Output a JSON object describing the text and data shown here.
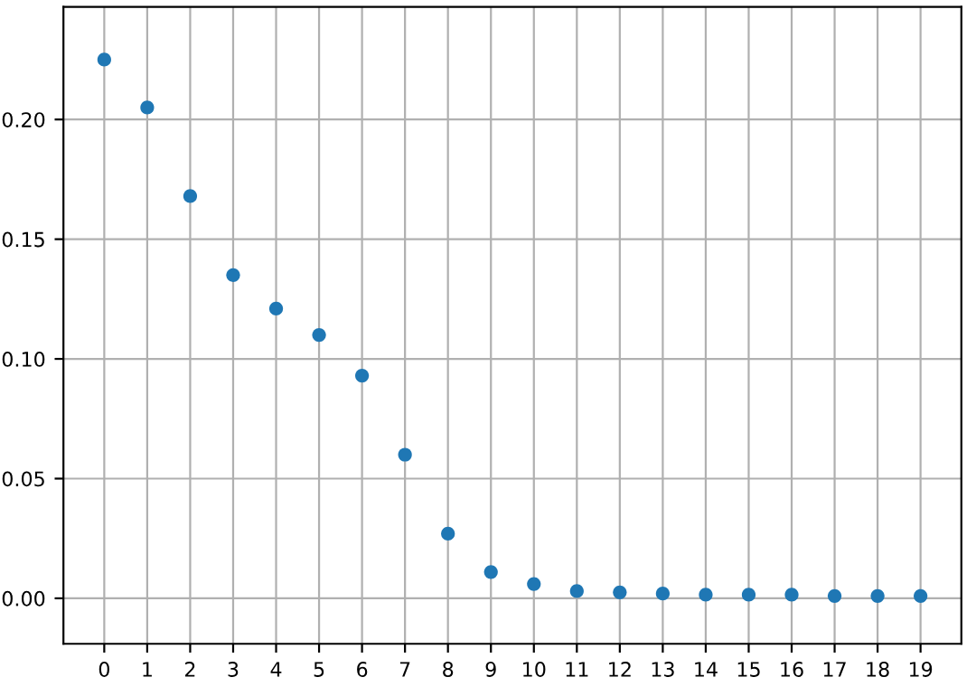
{
  "chart_data": {
    "type": "scatter",
    "x": [
      0,
      1,
      2,
      3,
      4,
      5,
      6,
      7,
      8,
      9,
      10,
      11,
      12,
      13,
      14,
      15,
      16,
      17,
      18,
      19
    ],
    "series": [
      {
        "color": "#1f77b4",
        "values": [
          0.225,
          0.205,
          0.168,
          0.135,
          0.121,
          0.11,
          0.093,
          0.06,
          0.027,
          0.011,
          0.006,
          0.003,
          0.0025,
          0.002,
          0.0015,
          0.0015,
          0.0015,
          0.001,
          0.001,
          0.001
        ]
      }
    ],
    "xlim": [
      -0.95,
      19.95
    ],
    "ylim": [
      -0.019,
      0.247
    ],
    "xticks": [
      0,
      1,
      2,
      3,
      4,
      5,
      6,
      7,
      8,
      9,
      10,
      11,
      12,
      13,
      14,
      15,
      16,
      17,
      18,
      19
    ],
    "yticks": [
      {
        "value": 0,
        "label": "0.00"
      },
      {
        "value": 0.05,
        "label": "0.05"
      },
      {
        "value": 0.1,
        "label": "0.10"
      },
      {
        "value": 0.15,
        "label": "0.15"
      },
      {
        "value": 0.2,
        "label": "0.20"
      }
    ],
    "grid": true,
    "marker": "circle"
  }
}
